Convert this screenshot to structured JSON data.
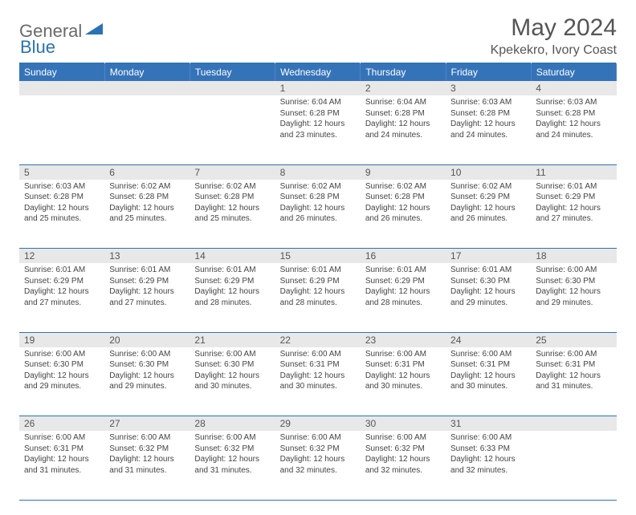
{
  "brand": {
    "part1": "General",
    "part2": "Blue"
  },
  "title": "May 2024",
  "location": "Kpekekro, Ivory Coast",
  "colors": {
    "header_bg": "#3573b9",
    "border": "#2a72b5",
    "daynum_bg": "#e8e8e8",
    "text": "#444444",
    "title_text": "#555555",
    "logo_gray": "#6a6a6a",
    "logo_blue": "#2a72b5"
  },
  "weekdays": [
    "Sunday",
    "Monday",
    "Tuesday",
    "Wednesday",
    "Thursday",
    "Friday",
    "Saturday"
  ],
  "weeks": [
    [
      null,
      null,
      null,
      {
        "d": "1",
        "sr": "6:04 AM",
        "ss": "6:28 PM",
        "dl": "12 hours and 23 minutes."
      },
      {
        "d": "2",
        "sr": "6:04 AM",
        "ss": "6:28 PM",
        "dl": "12 hours and 24 minutes."
      },
      {
        "d": "3",
        "sr": "6:03 AM",
        "ss": "6:28 PM",
        "dl": "12 hours and 24 minutes."
      },
      {
        "d": "4",
        "sr": "6:03 AM",
        "ss": "6:28 PM",
        "dl": "12 hours and 24 minutes."
      }
    ],
    [
      {
        "d": "5",
        "sr": "6:03 AM",
        "ss": "6:28 PM",
        "dl": "12 hours and 25 minutes."
      },
      {
        "d": "6",
        "sr": "6:02 AM",
        "ss": "6:28 PM",
        "dl": "12 hours and 25 minutes."
      },
      {
        "d": "7",
        "sr": "6:02 AM",
        "ss": "6:28 PM",
        "dl": "12 hours and 25 minutes."
      },
      {
        "d": "8",
        "sr": "6:02 AM",
        "ss": "6:28 PM",
        "dl": "12 hours and 26 minutes."
      },
      {
        "d": "9",
        "sr": "6:02 AM",
        "ss": "6:28 PM",
        "dl": "12 hours and 26 minutes."
      },
      {
        "d": "10",
        "sr": "6:02 AM",
        "ss": "6:29 PM",
        "dl": "12 hours and 26 minutes."
      },
      {
        "d": "11",
        "sr": "6:01 AM",
        "ss": "6:29 PM",
        "dl": "12 hours and 27 minutes."
      }
    ],
    [
      {
        "d": "12",
        "sr": "6:01 AM",
        "ss": "6:29 PM",
        "dl": "12 hours and 27 minutes."
      },
      {
        "d": "13",
        "sr": "6:01 AM",
        "ss": "6:29 PM",
        "dl": "12 hours and 27 minutes."
      },
      {
        "d": "14",
        "sr": "6:01 AM",
        "ss": "6:29 PM",
        "dl": "12 hours and 28 minutes."
      },
      {
        "d": "15",
        "sr": "6:01 AM",
        "ss": "6:29 PM",
        "dl": "12 hours and 28 minutes."
      },
      {
        "d": "16",
        "sr": "6:01 AM",
        "ss": "6:29 PM",
        "dl": "12 hours and 28 minutes."
      },
      {
        "d": "17",
        "sr": "6:01 AM",
        "ss": "6:30 PM",
        "dl": "12 hours and 29 minutes."
      },
      {
        "d": "18",
        "sr": "6:00 AM",
        "ss": "6:30 PM",
        "dl": "12 hours and 29 minutes."
      }
    ],
    [
      {
        "d": "19",
        "sr": "6:00 AM",
        "ss": "6:30 PM",
        "dl": "12 hours and 29 minutes."
      },
      {
        "d": "20",
        "sr": "6:00 AM",
        "ss": "6:30 PM",
        "dl": "12 hours and 29 minutes."
      },
      {
        "d": "21",
        "sr": "6:00 AM",
        "ss": "6:30 PM",
        "dl": "12 hours and 30 minutes."
      },
      {
        "d": "22",
        "sr": "6:00 AM",
        "ss": "6:31 PM",
        "dl": "12 hours and 30 minutes."
      },
      {
        "d": "23",
        "sr": "6:00 AM",
        "ss": "6:31 PM",
        "dl": "12 hours and 30 minutes."
      },
      {
        "d": "24",
        "sr": "6:00 AM",
        "ss": "6:31 PM",
        "dl": "12 hours and 30 minutes."
      },
      {
        "d": "25",
        "sr": "6:00 AM",
        "ss": "6:31 PM",
        "dl": "12 hours and 31 minutes."
      }
    ],
    [
      {
        "d": "26",
        "sr": "6:00 AM",
        "ss": "6:31 PM",
        "dl": "12 hours and 31 minutes."
      },
      {
        "d": "27",
        "sr": "6:00 AM",
        "ss": "6:32 PM",
        "dl": "12 hours and 31 minutes."
      },
      {
        "d": "28",
        "sr": "6:00 AM",
        "ss": "6:32 PM",
        "dl": "12 hours and 31 minutes."
      },
      {
        "d": "29",
        "sr": "6:00 AM",
        "ss": "6:32 PM",
        "dl": "12 hours and 32 minutes."
      },
      {
        "d": "30",
        "sr": "6:00 AM",
        "ss": "6:32 PM",
        "dl": "12 hours and 32 minutes."
      },
      {
        "d": "31",
        "sr": "6:00 AM",
        "ss": "6:33 PM",
        "dl": "12 hours and 32 minutes."
      },
      null
    ]
  ],
  "labels": {
    "sunrise": "Sunrise:",
    "sunset": "Sunset:",
    "daylight": "Daylight:"
  }
}
